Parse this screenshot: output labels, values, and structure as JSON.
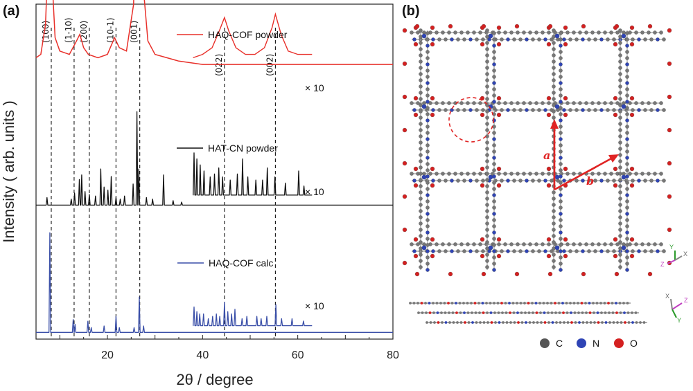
{
  "figure": {
    "panel_a_label": "(a)",
    "panel_b_label": "(b)"
  },
  "chart_data": {
    "type": "line",
    "xlabel": "2θ / degree",
    "ylabel": "Intensity ( arb. units )",
    "xlim": [
      5,
      80
    ],
    "xticks": [
      20,
      40,
      60,
      80
    ],
    "series": [
      {
        "name": "HAQ-COF powder",
        "color": "#e8302a",
        "multiplier_label": "× 10",
        "baseline": 0.82,
        "x": [
          5,
          6,
          7,
          7.6,
          8.1,
          8.5,
          9,
          10,
          12,
          13.5,
          14.2,
          15,
          16,
          18,
          20,
          21.5,
          22.5,
          24,
          25.5,
          26.2,
          26.6,
          27,
          27.6,
          28.5,
          30,
          35,
          40,
          50,
          60,
          70,
          80
        ],
        "y": [
          0.02,
          0.03,
          0.12,
          0.36,
          0.38,
          0.22,
          0.08,
          0.04,
          0.03,
          0.07,
          0.09,
          0.05,
          0.03,
          0.02,
          0.03,
          0.08,
          0.05,
          0.04,
          0.18,
          0.6,
          0.78,
          0.62,
          0.22,
          0.07,
          0.03,
          0.01,
          0.0,
          0.0,
          0.0,
          0.0,
          0.0
        ],
        "inset_x": [
          38,
          40,
          42,
          43.5,
          44.6,
          45.5,
          47,
          49,
          51,
          53,
          54.6,
          55.3,
          56.5,
          58,
          60,
          63
        ],
        "inset_y": [
          0.0,
          0.01,
          0.03,
          0.08,
          0.12,
          0.08,
          0.03,
          0.01,
          0.01,
          0.03,
          0.09,
          0.13,
          0.07,
          0.02,
          0.01,
          0.01
        ]
      },
      {
        "name": "HAT-CN powder",
        "color": "#111111",
        "multiplier_label": "× 10",
        "baseline": 0.47,
        "peaks_x": [
          7.3,
          12.4,
          13.1,
          14.1,
          14.6,
          15.3,
          16.2,
          17.5,
          18.6,
          19.3,
          20.1,
          20.8,
          21.8,
          22.7,
          23.6,
          25.4,
          26.2,
          26.6,
          28.2,
          29.5,
          31.8,
          33.8,
          35.6
        ],
        "peaks_y": [
          0.05,
          0.04,
          0.08,
          0.17,
          0.2,
          0.09,
          0.07,
          0.06,
          0.24,
          0.12,
          0.1,
          0.19,
          0.05,
          0.04,
          0.06,
          0.14,
          0.62,
          0.24,
          0.05,
          0.04,
          0.2,
          0.03,
          0.02
        ],
        "inset_peaks_x": [
          38.2,
          38.8,
          39.5,
          40.3,
          41.6,
          42.5,
          43.4,
          44.2,
          45.8,
          47.3,
          48.4,
          49.5,
          51.2,
          52.6,
          53.6,
          55.2,
          57.4,
          60.2,
          61.3
        ],
        "inset_peaks_y": [
          0.14,
          0.12,
          0.1,
          0.08,
          0.06,
          0.07,
          0.09,
          0.06,
          0.05,
          0.07,
          0.12,
          0.06,
          0.05,
          0.05,
          0.09,
          0.06,
          0.04,
          0.08,
          0.03
        ]
      },
      {
        "name": "HAQ-COF calc",
        "color": "#3a4fa8",
        "multiplier_label": "× 10",
        "baseline": 0.13,
        "peaks_x": [
          7.9,
          12.8,
          13.2,
          15.9,
          16.6,
          19.3,
          21.8,
          22.5,
          25.6,
          26.7,
          27.6
        ],
        "peaks_y": [
          0.62,
          0.08,
          0.05,
          0.07,
          0.03,
          0.04,
          0.1,
          0.03,
          0.03,
          0.22,
          0.04
        ],
        "inset_peaks_x": [
          38.2,
          38.8,
          39.4,
          40.2,
          41.2,
          42.1,
          42.9,
          43.6,
          44.6,
          45.3,
          46.1,
          46.8,
          48.3,
          49.3,
          51.4,
          52.3,
          53.5,
          55.4,
          56.6,
          58.8,
          61.2
        ],
        "inset_peaks_y": [
          0.08,
          0.06,
          0.05,
          0.05,
          0.03,
          0.04,
          0.05,
          0.04,
          0.1,
          0.06,
          0.05,
          0.07,
          0.03,
          0.04,
          0.04,
          0.03,
          0.04,
          0.09,
          0.03,
          0.03,
          0.02
        ]
      }
    ],
    "reference_lines": [
      {
        "x": 8.2,
        "label": "(100)"
      },
      {
        "x": 13.0,
        "label": "(1-10)"
      },
      {
        "x": 16.2,
        "label": "(200)"
      },
      {
        "x": 21.8,
        "label": "(10-1)"
      },
      {
        "x": 26.8,
        "label": "(001)"
      },
      {
        "x": 44.6,
        "label": "(022)"
      },
      {
        "x": 55.3,
        "label": "(002)"
      }
    ]
  },
  "structure": {
    "vector_a_label": "a",
    "vector_b_label": "b",
    "top_axes": {
      "y": "Y",
      "x": "X",
      "z": "Z"
    },
    "side_axes": {
      "x": "X",
      "z": "Z",
      "y": "Y"
    },
    "atom_key": [
      {
        "symbol": "C",
        "color": "#6f6f6f"
      },
      {
        "symbol": "N",
        "color": "#2f44b5"
      },
      {
        "symbol": "O",
        "color": "#d42020"
      }
    ],
    "colors": {
      "bond": "#9a9a9a",
      "carbon": "#777777",
      "nitrogen": "#2f44b5",
      "oxygen": "#d42020",
      "vector": "#e02424"
    }
  }
}
